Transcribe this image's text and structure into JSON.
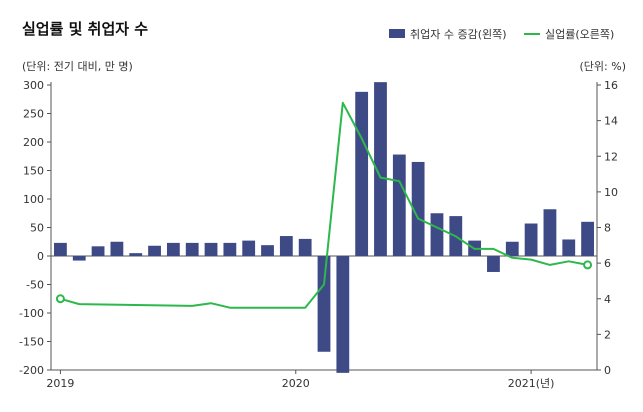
{
  "chart_data": {
    "type": "bar",
    "title": "실업률 및 취업자 수",
    "left_unit": "(단위: 전기 대비, 만 명)",
    "right_unit": "(단위: %)",
    "series": [
      {
        "name": "취업자 수 증감(왼쪽)",
        "type": "bar",
        "axis": "left",
        "color": "#3e4a86",
        "values": [
          23,
          -8,
          17,
          25,
          5,
          18,
          23,
          23,
          23,
          23,
          27,
          19,
          35,
          30,
          -168,
          -205,
          288,
          305,
          178,
          165,
          75,
          70,
          27,
          -28,
          25,
          57,
          82,
          29,
          60
        ]
      },
      {
        "name": "실업률(오른쪽)",
        "type": "line",
        "axis": "right",
        "color": "#2db84b",
        "points": [
          [
            0,
            4.0
          ],
          [
            1,
            3.7
          ],
          [
            7,
            3.6
          ],
          [
            8,
            3.75
          ],
          [
            9,
            3.5
          ],
          [
            13,
            3.5
          ],
          [
            14,
            4.8
          ],
          [
            15,
            15.0
          ],
          [
            16,
            13.0
          ],
          [
            17,
            10.8
          ],
          [
            18,
            10.6
          ],
          [
            19,
            8.5
          ],
          [
            20,
            8.0
          ],
          [
            21,
            7.5
          ],
          [
            22,
            6.8
          ],
          [
            23,
            6.8
          ],
          [
            24,
            6.3
          ],
          [
            25,
            6.2
          ],
          [
            26,
            5.9
          ],
          [
            27,
            6.1
          ],
          [
            28,
            5.9
          ]
        ]
      }
    ],
    "x_tick_labels": [
      {
        "index": 0,
        "label": "2019"
      },
      {
        "index": 12.5,
        "label": "2020"
      },
      {
        "index": 25,
        "label": "2021(년)"
      }
    ],
    "left_axis": {
      "min": -200,
      "max": 300,
      "ticks": [
        300,
        250,
        200,
        150,
        100,
        50,
        0,
        -50,
        -100,
        -150,
        -200
      ]
    },
    "right_axis": {
      "min": 0,
      "max": 16,
      "ticks": [
        16,
        14,
        12,
        10,
        8,
        6,
        4,
        2,
        0
      ]
    },
    "legend_position": "top-right",
    "grid": false
  }
}
